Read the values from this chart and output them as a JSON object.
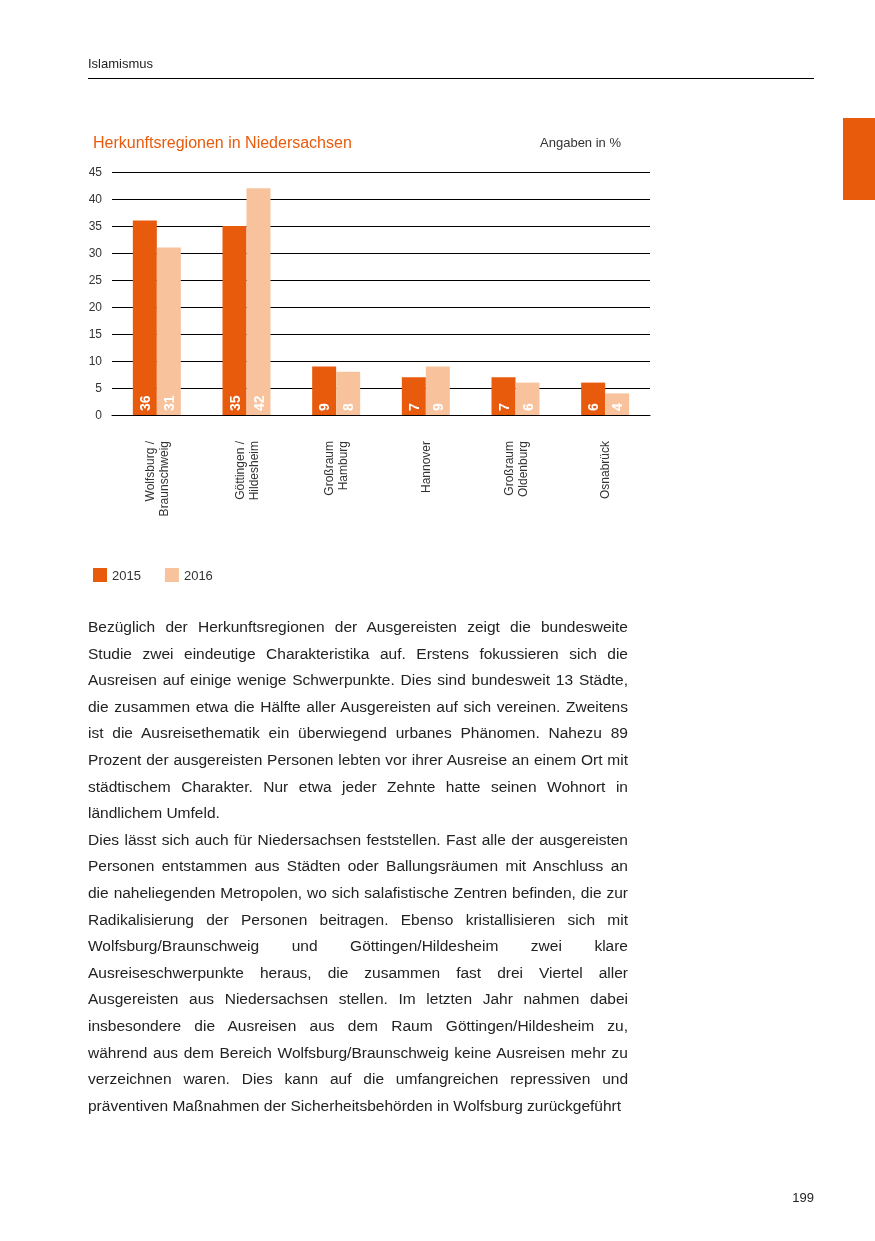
{
  "chart_data": {
    "type": "bar",
    "title": "Herkunftsregionen in Niedersachsen",
    "subtitle": "Angaben in %",
    "categories": [
      "Wolfsburg /\nBraunschweig",
      "Göttingen /\nHildesheim",
      "Großraum\nHamburg",
      "Hannover",
      "Großraum\nOldenburg",
      "Osnabrück"
    ],
    "series": [
      {
        "name": "2015",
        "color": "#e85a0c",
        "values": [
          36,
          35,
          9,
          7,
          7,
          6
        ]
      },
      {
        "name": "2016",
        "color": "#f8c39c",
        "values": [
          31,
          42,
          8,
          9,
          6,
          4
        ]
      }
    ],
    "ylim": [
      0,
      45
    ],
    "yticks": [
      0,
      5,
      10,
      15,
      20,
      25,
      30,
      35,
      40,
      45
    ],
    "grid": "y",
    "legend": "bottom left",
    "data_labels": true,
    "annotations": [
      "Islamismus",
      "Bezüglich der Herkunftsregionen der Ausgereisten zeigt die bundesweite Studie zwei eindeutige Charakteristika auf. Erstens fokussieren sich die Ausreisen auf einige wenige Schwerpunkte. Dies sind bundesweit 13 Städte, die zusammen etwa die Hälfte aller Ausgereisten auf sich vereinen. Zweitens ist die Ausreisethematik ein überwiegend urbanes Phänomen. Nahezu 89 Prozent der ausgereisten Personen lebten vor ihrer Ausreise an einem Ort mit städtischem Charakter. Nur etwa jeder Zehnte hatte seinen Wohnort in ländlichem Umfeld.",
      "Dies lässt sich auch für Niedersachsen feststellen. Fast alle der ausgereisten Personen entstammen aus Städten oder Ballungsräumen mit Anschluss an die naheliegenden Metropolen, wo sich salafistische Zentren befinden, die zur Radikalisierung der Personen beitragen. Ebenso kristallisieren sich mit Wolfsburg/Braunschweig und Göttingen/Hildesheim zwei klare Ausreiseschwerpunkte heraus, die zusammen fast drei Viertel aller Ausgereisten aus Niedersachsen stellen. Im letzten Jahr nahmen dabei insbesondere die Ausreisen aus dem Raum Göttingen/Hildesheim zu, während aus dem Bereich Wolfsburg/Braunschweig keine Ausreisen mehr zu verzeichnen waren. Dies kann auf die umfangreichen repressiven und präventiven Maßnahmen der Sicherheitsbehörden in Wolfsburg zurückgeführt",
      "199"
    ]
  }
}
